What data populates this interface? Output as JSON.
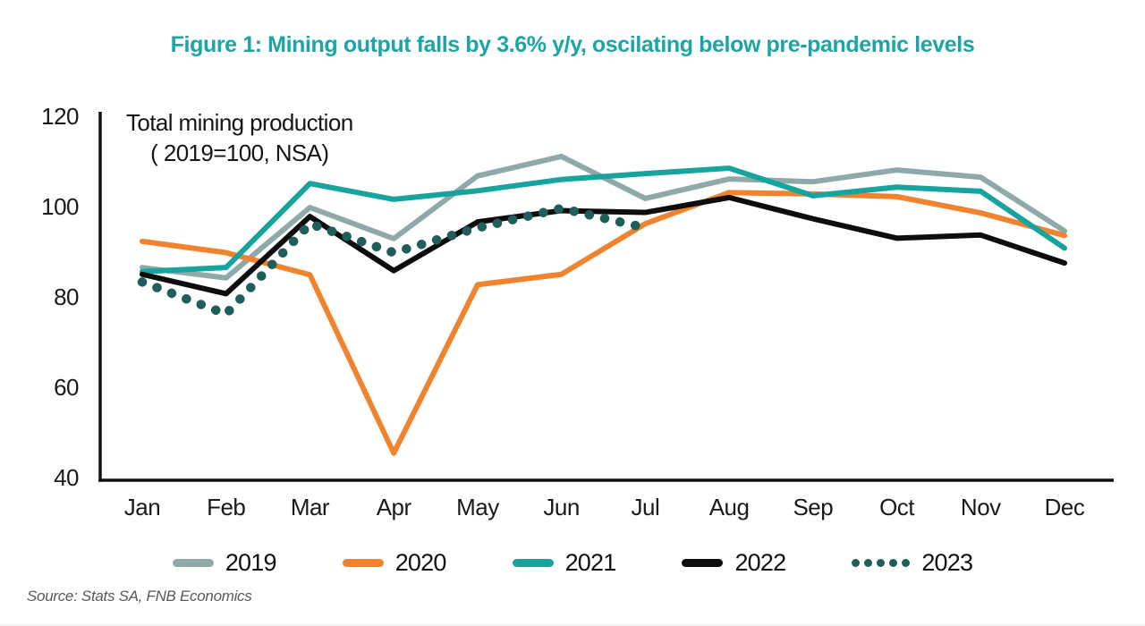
{
  "title": "Figure 1: Mining output falls by 3.6% y/y, oscilating below pre-pandemic levels",
  "annotation": {
    "line1": "Total mining production",
    "line2": "( 2019=100, NSA)"
  },
  "source": "Source: Stats SA, FNB Economics",
  "colors": {
    "title_teal": "#1BA5A6",
    "axis": "#111111",
    "series_2019": "#8FA9A9",
    "series_2020": "#F2832E",
    "series_2021": "#17A39E",
    "series_2022": "#0D0D0D",
    "series_2023": "#1E5F5C"
  },
  "chart_data": {
    "type": "line",
    "title": "Total mining production ( 2019=100, NSA)",
    "categories": [
      "Jan",
      "Feb",
      "Mar",
      "Apr",
      "May",
      "Jun",
      "Jul",
      "Aug",
      "Sep",
      "Oct",
      "Nov",
      "Dec"
    ],
    "series": [
      {
        "name": "2019",
        "color": "#8FA9A9",
        "style": "solid",
        "values": [
          86.7,
          84.4,
          100.0,
          93.1,
          107.0,
          111.3,
          102.0,
          106.3,
          105.7,
          108.3,
          106.7,
          94.8
        ]
      },
      {
        "name": "2020",
        "color": "#F2832E",
        "style": "solid",
        "values": [
          92.5,
          90.0,
          85.1,
          45.6,
          82.9,
          85.2,
          96.4,
          103.3,
          103.0,
          102.4,
          98.8,
          93.8
        ]
      },
      {
        "name": "2021",
        "color": "#17A39E",
        "style": "solid",
        "values": [
          85.8,
          86.7,
          105.3,
          101.8,
          103.7,
          106.2,
          107.5,
          108.7,
          102.6,
          104.5,
          103.6,
          91.0
        ]
      },
      {
        "name": "2022",
        "color": "#0D0D0D",
        "style": "solid",
        "values": [
          85.2,
          80.9,
          98.0,
          86.0,
          96.8,
          99.3,
          98.9,
          102.2,
          97.5,
          93.2,
          93.9,
          87.7
        ]
      },
      {
        "name": "2023",
        "color": "#1E5F5C",
        "style": "dotted",
        "values": [
          83.5,
          76.4,
          96.4,
          90.0,
          95.5,
          99.8,
          95.5
        ]
      }
    ],
    "y_ticks": [
      120,
      100,
      80,
      60,
      40
    ],
    "ylim": [
      40,
      120
    ],
    "grid": false,
    "legend_position": "bottom"
  }
}
